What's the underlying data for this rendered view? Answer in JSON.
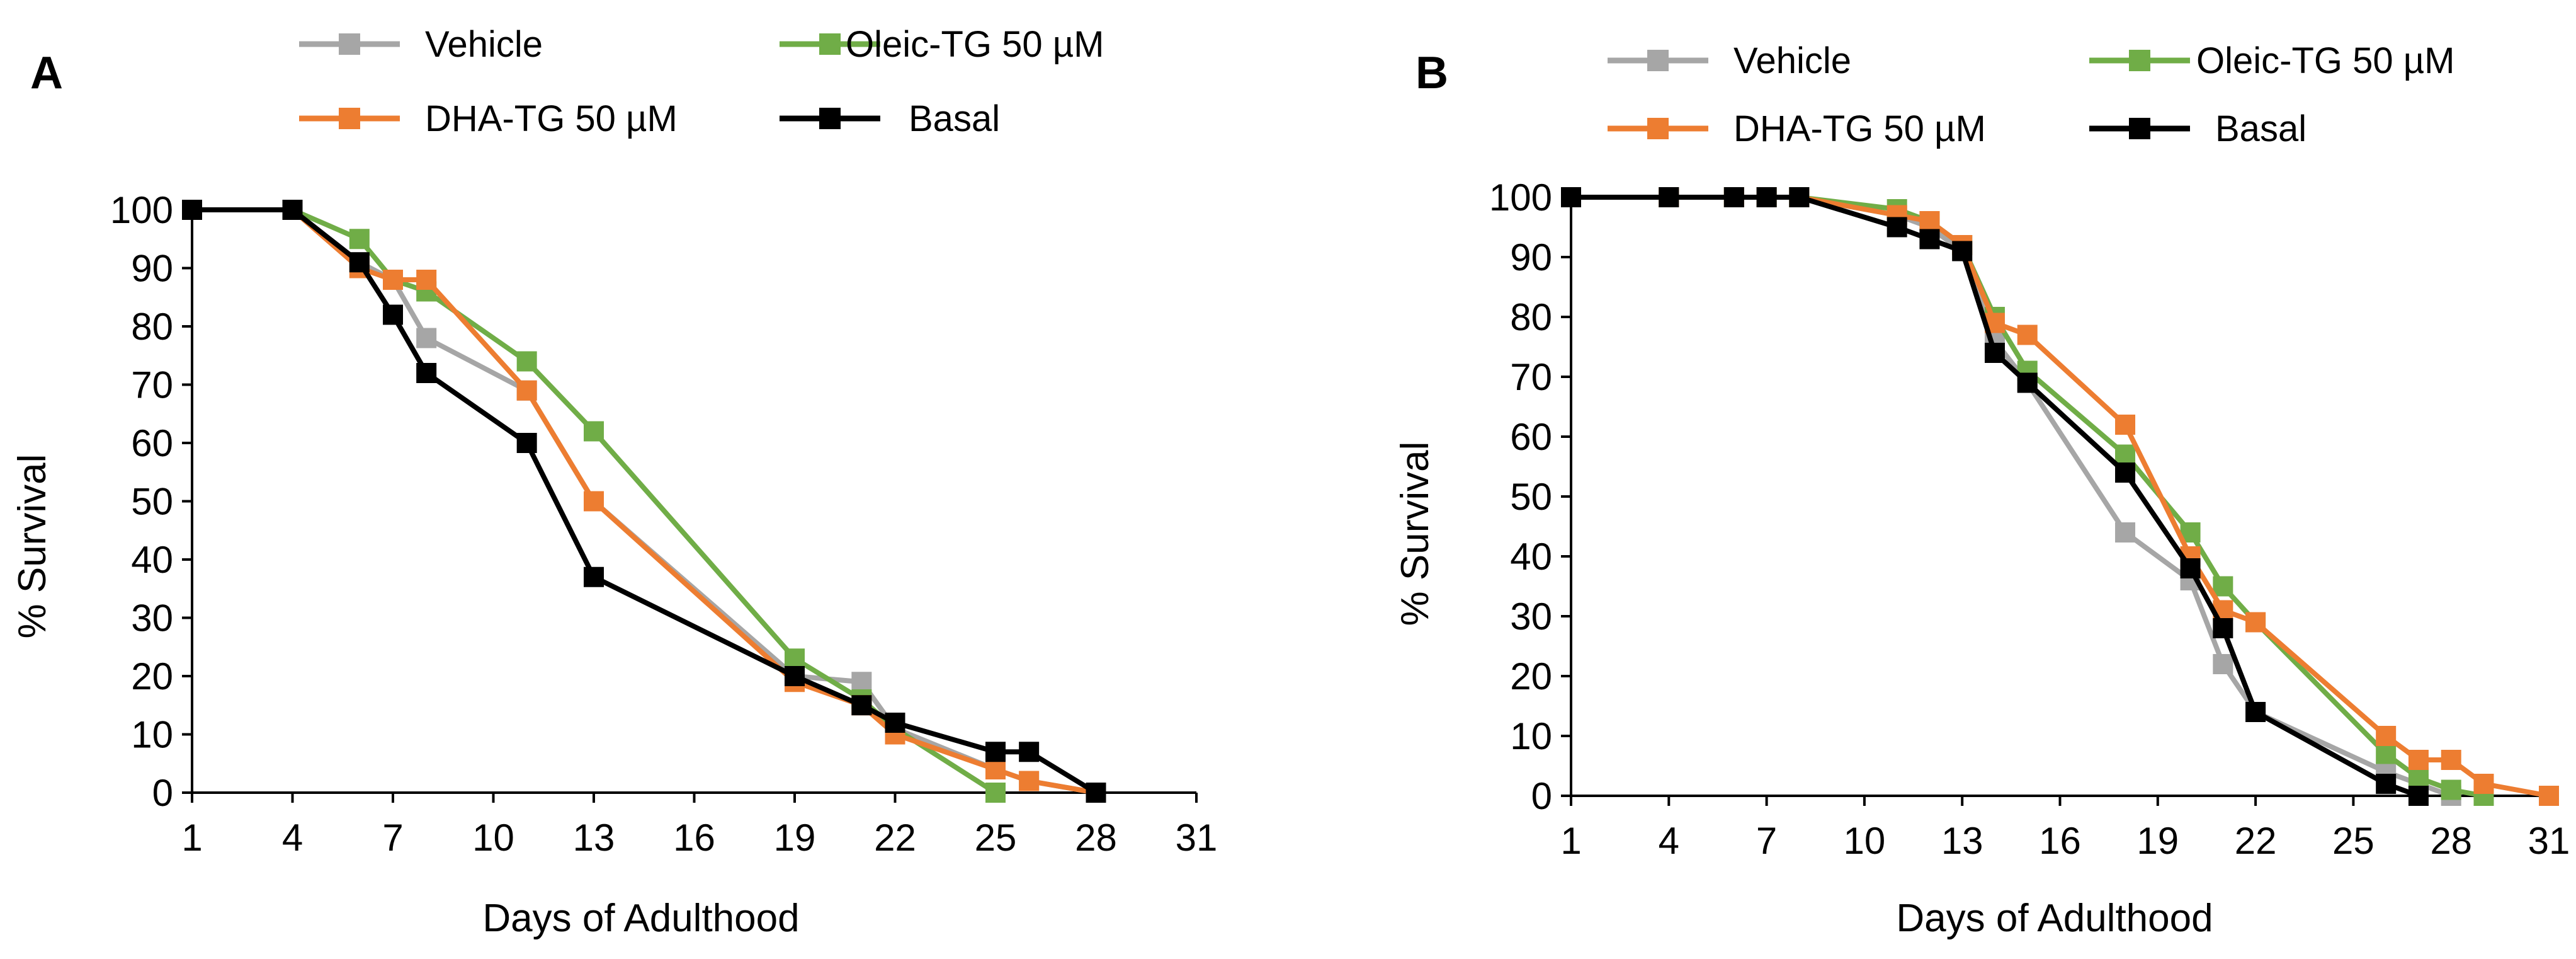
{
  "colors": {
    "vehicle": "#a6a6a6",
    "oleic": "#70ad47",
    "dha": "#ed7d31",
    "basal": "#000000",
    "axis": "#000000"
  },
  "chart_data": [
    {
      "panel": "A",
      "type": "line",
      "xlabel": "Days of Adulthood",
      "ylabel": "% Survival",
      "xlim": [
        1,
        31
      ],
      "ylim": [
        0,
        100
      ],
      "x_ticks": [
        1,
        4,
        7,
        10,
        13,
        16,
        19,
        22,
        25,
        28,
        31
      ],
      "y_ticks": [
        0,
        10,
        20,
        30,
        40,
        50,
        60,
        70,
        80,
        90,
        100
      ],
      "grid": false,
      "legend": "top",
      "series": [
        {
          "key": "vehicle",
          "name": "Vehicle",
          "color": "#a6a6a6",
          "x": [
            1,
            4,
            6,
            7,
            8,
            11,
            13,
            19,
            21,
            22,
            25,
            26,
            28
          ],
          "y": [
            100,
            100,
            91,
            88,
            78,
            69,
            50,
            20,
            19,
            11,
            4,
            2,
            0
          ]
        },
        {
          "key": "oleic",
          "name": "Oleic-TG 50 µM",
          "color": "#70ad47",
          "x": [
            1,
            4,
            6,
            7,
            8,
            11,
            13,
            19,
            21,
            22,
            25
          ],
          "y": [
            100,
            100,
            95,
            88,
            86,
            74,
            62,
            23,
            16,
            11,
            0
          ]
        },
        {
          "key": "dha",
          "name": "DHA-TG 50 µM",
          "color": "#ed7d31",
          "x": [
            1,
            4,
            6,
            7,
            8,
            11,
            13,
            19,
            21,
            22,
            25,
            26,
            28
          ],
          "y": [
            100,
            100,
            90,
            88,
            88,
            69,
            50,
            19,
            15,
            10,
            4,
            2,
            0
          ]
        },
        {
          "key": "basal",
          "name": "Basal",
          "color": "#000000",
          "x": [
            1,
            4,
            6,
            7,
            8,
            11,
            13,
            19,
            21,
            22,
            25,
            26,
            28
          ],
          "y": [
            100,
            100,
            91,
            82,
            72,
            60,
            37,
            20,
            15,
            12,
            7,
            7,
            0
          ]
        }
      ]
    },
    {
      "panel": "B",
      "type": "line",
      "xlabel": "Days of Adulthood",
      "ylabel": "% Survival",
      "xlim": [
        1,
        31
      ],
      "ylim": [
        0,
        100
      ],
      "x_ticks": [
        1,
        4,
        7,
        10,
        13,
        16,
        19,
        22,
        25,
        28,
        31
      ],
      "y_ticks": [
        0,
        10,
        20,
        30,
        40,
        50,
        60,
        70,
        80,
        90,
        100
      ],
      "grid": false,
      "legend": "top",
      "series": [
        {
          "key": "vehicle",
          "name": "Vehicle",
          "color": "#a6a6a6",
          "x": [
            1,
            4,
            6,
            7,
            8,
            11,
            12,
            13,
            14,
            15,
            18,
            20,
            21,
            22,
            26,
            27,
            28
          ],
          "y": [
            100,
            100,
            100,
            100,
            100,
            97,
            95,
            91,
            76,
            69,
            44,
            36,
            22,
            14,
            4,
            2,
            0
          ]
        },
        {
          "key": "oleic",
          "name": "Oleic-TG 50 µM",
          "color": "#70ad47",
          "x": [
            1,
            4,
            6,
            7,
            8,
            11,
            12,
            13,
            14,
            15,
            18,
            20,
            21,
            22,
            26,
            27,
            28,
            29
          ],
          "y": [
            100,
            100,
            100,
            100,
            100,
            98,
            96,
            92,
            80,
            71,
            57,
            44,
            35,
            29,
            7,
            3,
            1,
            0
          ]
        },
        {
          "key": "dha",
          "name": "DHA-TG 50 µM",
          "color": "#ed7d31",
          "x": [
            1,
            4,
            6,
            7,
            8,
            11,
            12,
            13,
            14,
            15,
            18,
            20,
            21,
            22,
            26,
            27,
            28,
            29,
            31
          ],
          "y": [
            100,
            100,
            100,
            100,
            100,
            97,
            96,
            92,
            79,
            77,
            62,
            40,
            31,
            29,
            10,
            6,
            6,
            2,
            0
          ]
        },
        {
          "key": "basal",
          "name": "Basal",
          "color": "#000000",
          "x": [
            1,
            4,
            6,
            7,
            8,
            11,
            12,
            13,
            14,
            15,
            18,
            20,
            21,
            22,
            26,
            27
          ],
          "y": [
            100,
            100,
            100,
            100,
            100,
            95,
            93,
            91,
            74,
            69,
            54,
            38,
            28,
            14,
            2,
            0
          ]
        }
      ]
    }
  ]
}
